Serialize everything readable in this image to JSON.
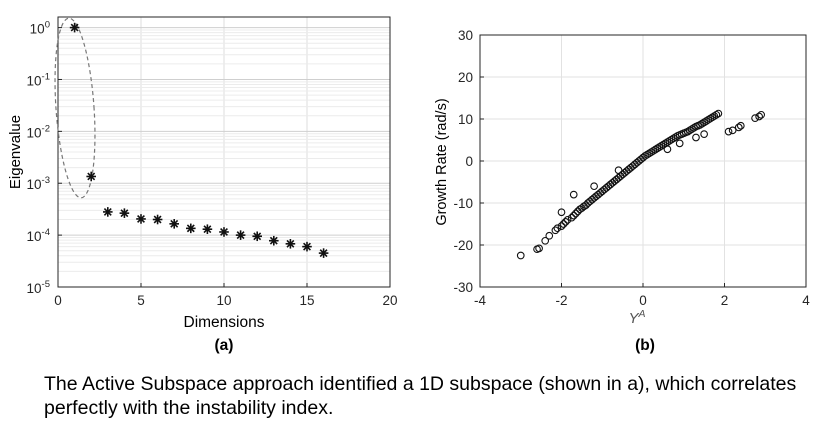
{
  "caption": {
    "text": "The Active Subspace approach identified a 1D subspace (shown in a), which correlates perfectly with the instability index."
  },
  "chart_data": [
    {
      "type": "scatter",
      "panel_label": "(a)",
      "xlabel": "Dimensions",
      "ylabel": "Eigenvalue",
      "xlim": [
        0,
        20
      ],
      "ylim": [
        1e-05,
        1.6
      ],
      "yscale": "log",
      "grid": true,
      "marker": "asterisk",
      "x_ticks": [
        0,
        5,
        10,
        15,
        20
      ],
      "x_tick_labels": [
        "0",
        "5",
        "10",
        "15",
        "20"
      ],
      "y_tick_labels": [
        {
          "value": 1,
          "base": "10",
          "exp": "0"
        },
        {
          "value": 0.1,
          "base": "10",
          "exp": "-1"
        },
        {
          "value": 0.01,
          "base": "10",
          "exp": "-2"
        },
        {
          "value": 0.001,
          "base": "10",
          "exp": "-3"
        },
        {
          "value": 0.0001,
          "base": "10",
          "exp": "-4"
        },
        {
          "value": 1e-05,
          "base": "10",
          "exp": "-5"
        }
      ],
      "x": [
        1,
        2,
        3,
        4,
        5,
        6,
        7,
        8,
        9,
        10,
        11,
        12,
        13,
        14,
        15,
        16
      ],
      "y": [
        1.0,
        0.00135,
        0.00028,
        0.000265,
        0.000205,
        0.0002,
        0.000165,
        0.000135,
        0.00013,
        0.000115,
        0.0001,
        9.5e-05,
        7.8e-05,
        6.8e-05,
        6e-05,
        4.5e-05
      ],
      "annotation": "dashed-ellipse around first two eigenvalues"
    },
    {
      "type": "scatter",
      "panel_label": "(b)",
      "xlabel_base": "Y",
      "xlabel_sup": "A",
      "ylabel": "Growth Rate (rad/s)",
      "xlim": [
        -4,
        4
      ],
      "ylim": [
        -30,
        30
      ],
      "grid": true,
      "marker": "circle",
      "x_ticks": [
        -4,
        -2,
        0,
        2,
        4
      ],
      "x_tick_labels": [
        "-4",
        "-2",
        "0",
        "2",
        "4"
      ],
      "y_ticks": [
        -30,
        -20,
        -10,
        0,
        10,
        20,
        30
      ],
      "y_tick_labels": [
        "-30",
        "-20",
        "-10",
        "0",
        "10",
        "20",
        "30"
      ],
      "x": [
        -3.0,
        -2.6,
        -2.55,
        -2.4,
        -2.3,
        -2.15,
        -2.1,
        -2.0,
        -1.95,
        -1.9,
        -1.85,
        -1.75,
        -1.7,
        -1.65,
        -1.6,
        -1.55,
        -1.5,
        -1.45,
        -1.4,
        -1.35,
        -1.3,
        -1.25,
        -1.2,
        -1.15,
        -1.1,
        -1.05,
        -1.0,
        -0.95,
        -0.9,
        -0.85,
        -0.8,
        -0.75,
        -0.7,
        -0.65,
        -0.6,
        -0.55,
        -0.5,
        -0.45,
        -0.4,
        -0.35,
        -0.3,
        -0.25,
        -0.2,
        -0.15,
        -0.1,
        -0.05,
        0.0,
        0.05,
        0.1,
        0.15,
        0.2,
        0.25,
        0.3,
        0.35,
        0.4,
        0.45,
        0.5,
        0.55,
        0.6,
        0.65,
        0.7,
        0.75,
        0.8,
        0.85,
        0.9,
        0.95,
        1.0,
        1.05,
        1.1,
        1.15,
        1.2,
        1.25,
        1.3,
        1.35,
        1.4,
        1.45,
        1.5,
        1.55,
        1.6,
        1.65,
        1.7,
        1.75,
        1.8,
        1.85,
        2.1,
        2.2,
        2.35,
        2.4,
        2.75,
        2.85,
        2.9,
        -2.0,
        -1.7,
        -1.2,
        -0.6,
        0.6,
        0.9,
        1.3,
        1.5
      ],
      "y": [
        -22.5,
        -21.0,
        -20.8,
        -19.0,
        -17.8,
        -16.5,
        -16.0,
        -15.5,
        -15.0,
        -14.5,
        -14.0,
        -13.5,
        -13.0,
        -12.5,
        -12.0,
        -11.5,
        -11.2,
        -10.8,
        -10.5,
        -10.0,
        -9.6,
        -9.2,
        -8.8,
        -8.4,
        -8.0,
        -7.6,
        -7.2,
        -6.8,
        -6.4,
        -6.0,
        -5.6,
        -5.2,
        -4.8,
        -4.4,
        -4.0,
        -3.6,
        -3.2,
        -2.8,
        -2.4,
        -2.0,
        -1.6,
        -1.2,
        -0.8,
        -0.4,
        0.0,
        0.4,
        0.8,
        1.2,
        1.5,
        1.8,
        2.1,
        2.4,
        2.7,
        3.0,
        3.3,
        3.6,
        3.9,
        4.2,
        4.5,
        4.8,
        5.1,
        5.4,
        5.7,
        6.0,
        6.2,
        6.4,
        6.6,
        6.8,
        7.0,
        7.3,
        7.6,
        7.9,
        8.2,
        8.4,
        8.6,
        8.9,
        9.2,
        9.5,
        9.8,
        10.1,
        10.4,
        10.7,
        11.0,
        11.3,
        7.0,
        7.3,
        8.0,
        8.4,
        10.2,
        10.6,
        11.0,
        -12.2,
        -8.0,
        -6.0,
        -2.2,
        2.8,
        4.2,
        5.6,
        6.4
      ]
    }
  ]
}
